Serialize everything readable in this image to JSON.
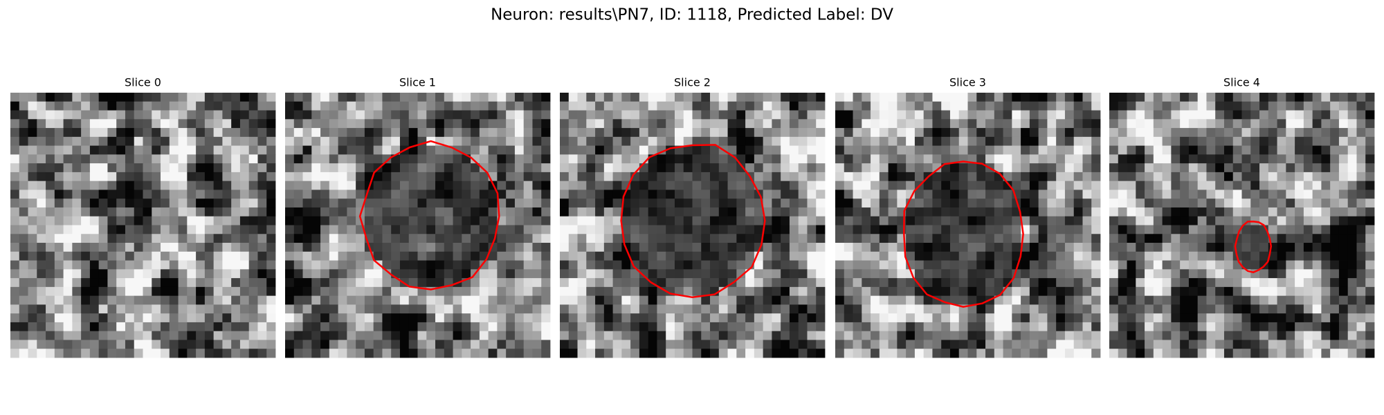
{
  "title": "Neuron: results\\PN7, ID: 1118, Predicted Label: DV",
  "panels": [
    {
      "title": "Slice 0"
    },
    {
      "title": "Slice 1"
    },
    {
      "title": "Slice 2"
    },
    {
      "title": "Slice 3"
    },
    {
      "title": "Slice 4"
    }
  ]
}
